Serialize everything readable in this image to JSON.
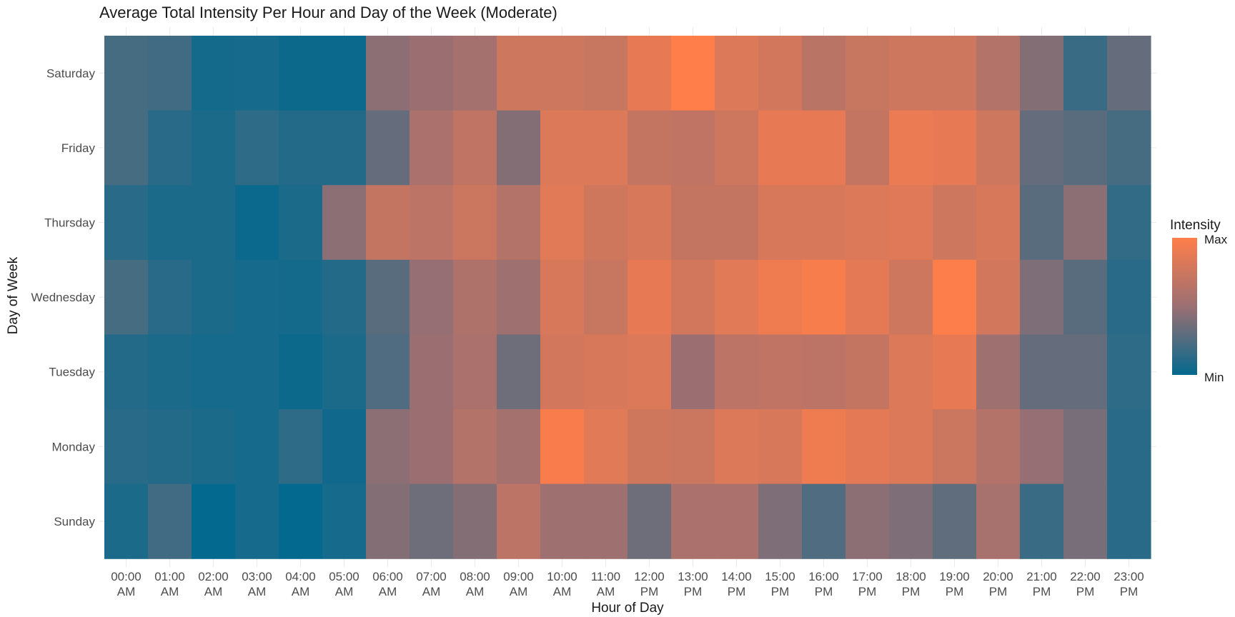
{
  "chart_data": {
    "type": "heatmap",
    "title": "Average Total Intensity Per Hour and Day of the Week (Moderate)",
    "xlabel": "Hour of Day",
    "ylabel": "Day of Week",
    "x_categories": [
      [
        "00:00",
        "AM"
      ],
      [
        "01:00",
        "AM"
      ],
      [
        "02:00",
        "AM"
      ],
      [
        "03:00",
        "AM"
      ],
      [
        "04:00",
        "AM"
      ],
      [
        "05:00",
        "AM"
      ],
      [
        "06:00",
        "AM"
      ],
      [
        "07:00",
        "AM"
      ],
      [
        "08:00",
        "AM"
      ],
      [
        "09:00",
        "AM"
      ],
      [
        "10:00",
        "AM"
      ],
      [
        "11:00",
        "AM"
      ],
      [
        "12:00",
        "PM"
      ],
      [
        "13:00",
        "PM"
      ],
      [
        "14:00",
        "PM"
      ],
      [
        "15:00",
        "PM"
      ],
      [
        "16:00",
        "PM"
      ],
      [
        "17:00",
        "PM"
      ],
      [
        "18:00",
        "PM"
      ],
      [
        "19:00",
        "PM"
      ],
      [
        "20:00",
        "PM"
      ],
      [
        "21:00",
        "PM"
      ],
      [
        "22:00",
        "PM"
      ],
      [
        "23:00",
        "PM"
      ]
    ],
    "y_categories": [
      "Saturday",
      "Friday",
      "Thursday",
      "Wednesday",
      "Tuesday",
      "Monday",
      "Sunday"
    ],
    "values_scale": "relative intensity, 0 = Min, 1 = Max",
    "values": [
      [
        0.22,
        0.2,
        0.05,
        0.06,
        0.03,
        0.02,
        0.45,
        0.5,
        0.55,
        0.75,
        0.75,
        0.72,
        0.88,
        1.0,
        0.82,
        0.78,
        0.65,
        0.72,
        0.75,
        0.75,
        0.62,
        0.42,
        0.18,
        0.32
      ],
      [
        0.22,
        0.12,
        0.08,
        0.14,
        0.1,
        0.1,
        0.32,
        0.58,
        0.68,
        0.42,
        0.82,
        0.82,
        0.7,
        0.68,
        0.75,
        0.88,
        0.88,
        0.7,
        0.9,
        0.88,
        0.75,
        0.32,
        0.28,
        0.22
      ],
      [
        0.12,
        0.08,
        0.08,
        0.02,
        0.08,
        0.45,
        0.7,
        0.66,
        0.74,
        0.62,
        0.85,
        0.76,
        0.8,
        0.7,
        0.7,
        0.8,
        0.8,
        0.82,
        0.84,
        0.75,
        0.8,
        0.28,
        0.45,
        0.15
      ],
      [
        0.22,
        0.12,
        0.08,
        0.06,
        0.05,
        0.1,
        0.28,
        0.48,
        0.6,
        0.52,
        0.8,
        0.72,
        0.88,
        0.78,
        0.85,
        0.92,
        0.96,
        0.86,
        0.75,
        0.99,
        0.78,
        0.4,
        0.28,
        0.12
      ],
      [
        0.1,
        0.08,
        0.06,
        0.06,
        0.03,
        0.08,
        0.25,
        0.5,
        0.58,
        0.35,
        0.78,
        0.8,
        0.82,
        0.5,
        0.66,
        0.68,
        0.66,
        0.7,
        0.82,
        0.88,
        0.52,
        0.32,
        0.32,
        0.14
      ],
      [
        0.12,
        0.1,
        0.08,
        0.06,
        0.14,
        0.04,
        0.45,
        0.5,
        0.62,
        0.55,
        0.97,
        0.85,
        0.76,
        0.74,
        0.82,
        0.8,
        0.92,
        0.86,
        0.82,
        0.74,
        0.62,
        0.48,
        0.38,
        0.12
      ],
      [
        0.08,
        0.2,
        0.0,
        0.06,
        0.0,
        0.06,
        0.42,
        0.35,
        0.42,
        0.66,
        0.52,
        0.52,
        0.35,
        0.58,
        0.58,
        0.4,
        0.25,
        0.45,
        0.4,
        0.3,
        0.56,
        0.18,
        0.38,
        0.12
      ]
    ],
    "colors": {
      "low": "#04698E",
      "mid": "#9B6F72",
      "high": "#FF7E4A"
    },
    "legend": {
      "title": "Intensity",
      "max_label": "Max",
      "min_label": "Min",
      "placement": "right"
    },
    "grid": true
  }
}
